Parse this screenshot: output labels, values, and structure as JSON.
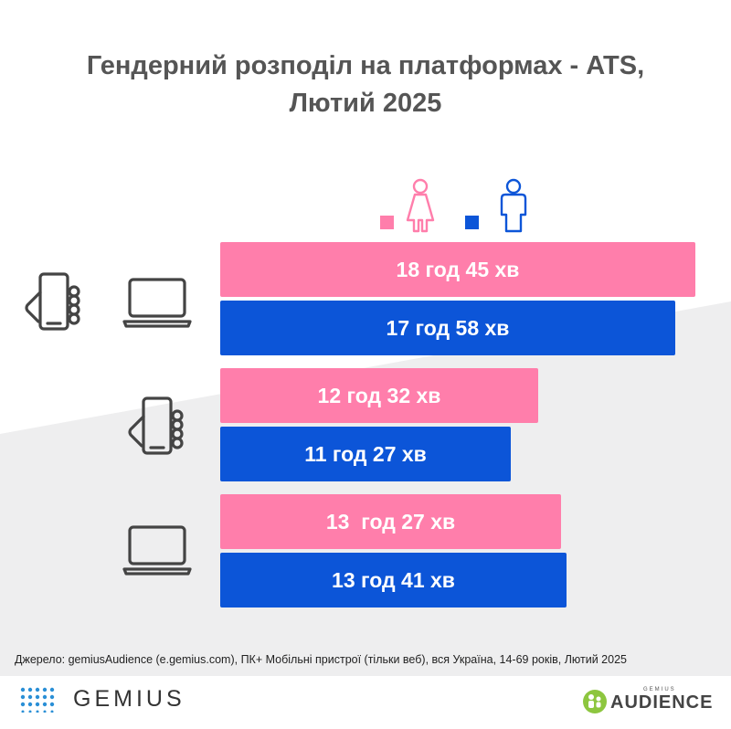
{
  "chart_data": {
    "type": "bar",
    "orientation": "horizontal",
    "title": "Гендерний розподіл на платформах - ATS, Лютий 2025",
    "title_lines": [
      "Гендерний розподіл на платформах - ATS,",
      "Лютий 2025"
    ],
    "categories": [
      "mobile-and-pc",
      "mobile",
      "pc"
    ],
    "series": [
      {
        "gender": "female",
        "color": "#ff7eab",
        "values_minutes": [
          1125,
          752,
          807
        ],
        "labels": [
          "18 год 45 хв",
          "12 год 32 хв",
          "13  год 27 хв"
        ]
      },
      {
        "gender": "male",
        "color": "#0c55d8",
        "values_minutes": [
          1078,
          687,
          821
        ],
        "labels": [
          "17 год 58 хв",
          "11 год 27 хв",
          "13 год 41 хв"
        ]
      }
    ],
    "legend_position": "top",
    "xlim": [
      0,
      1125
    ],
    "grid": false
  },
  "icons": {
    "female": "female-person-icon",
    "male": "male-person-icon",
    "phone": "smartphone-in-hand-icon",
    "laptop": "laptop-icon"
  },
  "footer": {
    "source": "Джерело: gemiusAudience (e.gemius.com), ПК+ Мобільні пристрої (тільки веб), вся Україна, 14-69 років, Лютий 2025",
    "gemius_logo_text": "GEMIUS",
    "audience_small": "GEMIUS",
    "audience_big": "AUDIENCE"
  }
}
